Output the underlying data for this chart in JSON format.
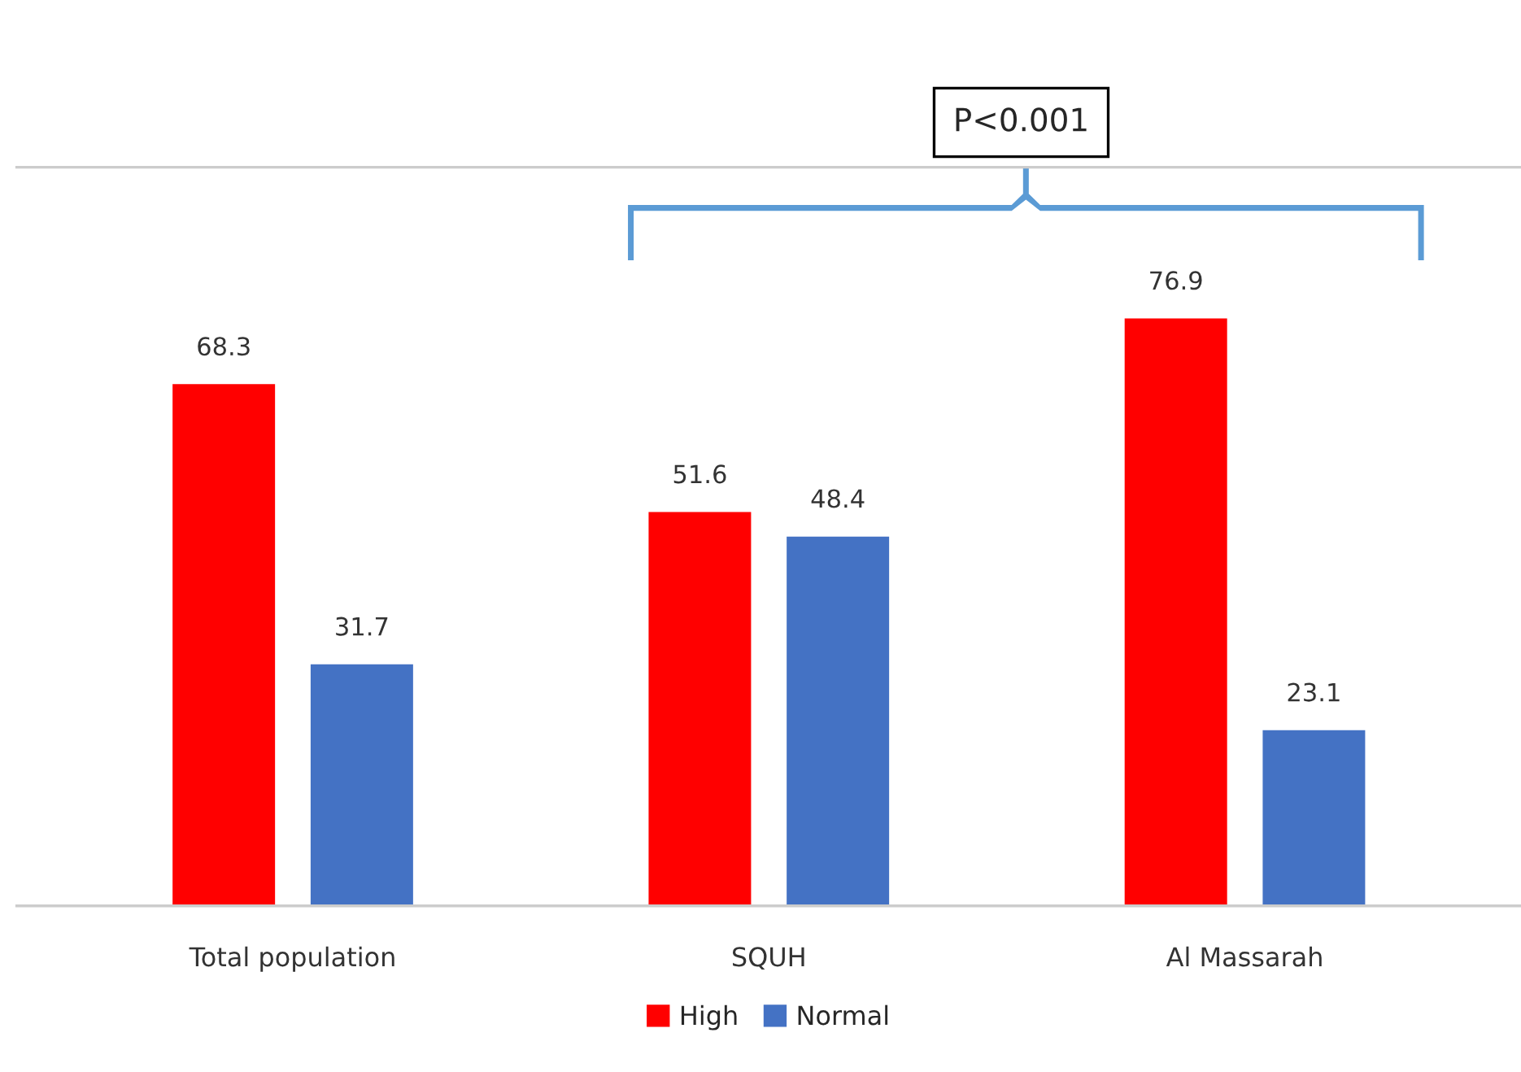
{
  "chart_data": {
    "type": "bar",
    "categories": [
      "Total population",
      "SQUH",
      "Al Massarah"
    ],
    "series": [
      {
        "name": "High",
        "color": "#ff0000",
        "values": [
          68.3,
          51.6,
          76.9
        ]
      },
      {
        "name": "Normal",
        "color": "#4472c4",
        "values": [
          31.7,
          48.4,
          23.1
        ]
      }
    ],
    "ylim": [
      0,
      96.5
    ],
    "tick_labels": "x",
    "data_labels": true,
    "legend": "bottom",
    "grid": false,
    "annotations": [
      "P<0.001"
    ]
  }
}
